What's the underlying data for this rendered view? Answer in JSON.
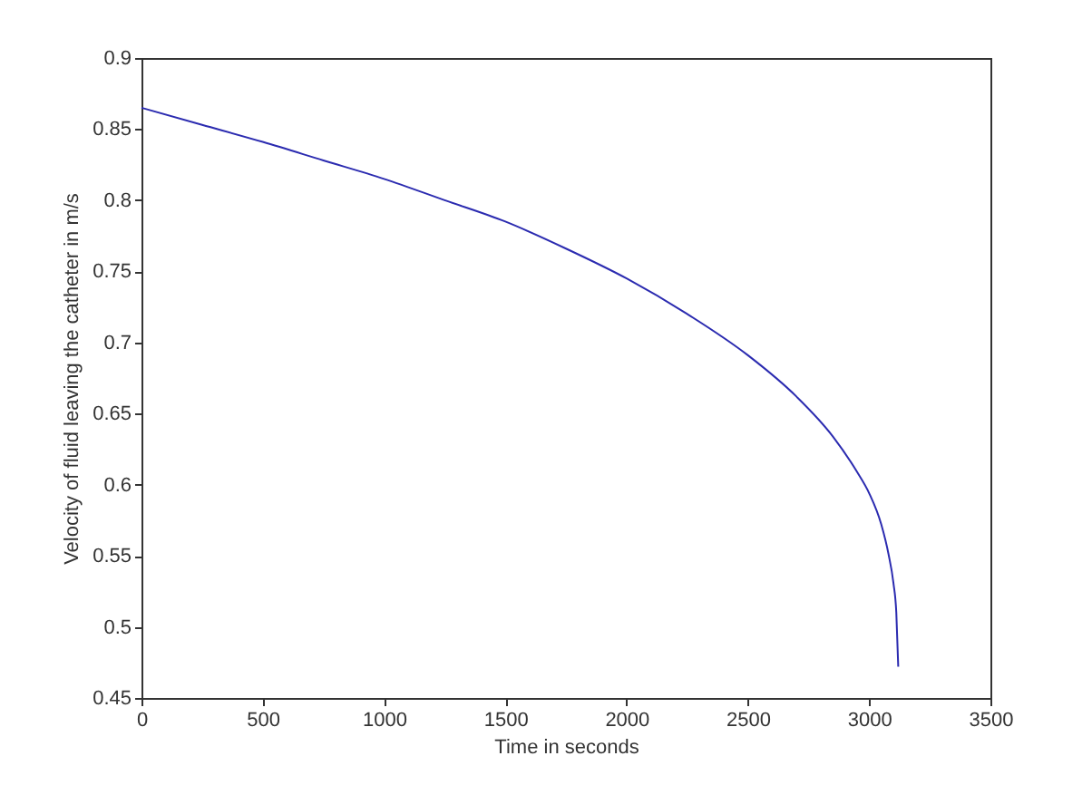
{
  "chart_data": {
    "type": "line",
    "xlabel": "Time in seconds",
    "ylabel": "Velocity of fluid leaving the catheter in m/s",
    "x": [
      0,
      250,
      500,
      750,
      1000,
      1250,
      1500,
      1750,
      2000,
      2250,
      2500,
      2700,
      2850,
      2950,
      3000,
      3050,
      3080,
      3100,
      3112,
      3120
    ],
    "series": [
      {
        "color": "#2b2bb0",
        "values": [
          0.865,
          0.853,
          0.841,
          0.828,
          0.815,
          0.8,
          0.785,
          0.766,
          0.745,
          0.72,
          0.691,
          0.662,
          0.634,
          0.609,
          0.594,
          0.572,
          0.551,
          0.531,
          0.51,
          0.472
        ]
      }
    ],
    "xlim": [
      0,
      3500
    ],
    "ylim": [
      0.45,
      0.9
    ],
    "xticks": [
      0,
      500,
      1000,
      1500,
      2000,
      2500,
      3000,
      3500
    ],
    "yticks": [
      0.45,
      0.5,
      0.55,
      0.6,
      0.65,
      0.7,
      0.75,
      0.8,
      0.85,
      0.9
    ],
    "grid": false,
    "line_style": "solid"
  }
}
